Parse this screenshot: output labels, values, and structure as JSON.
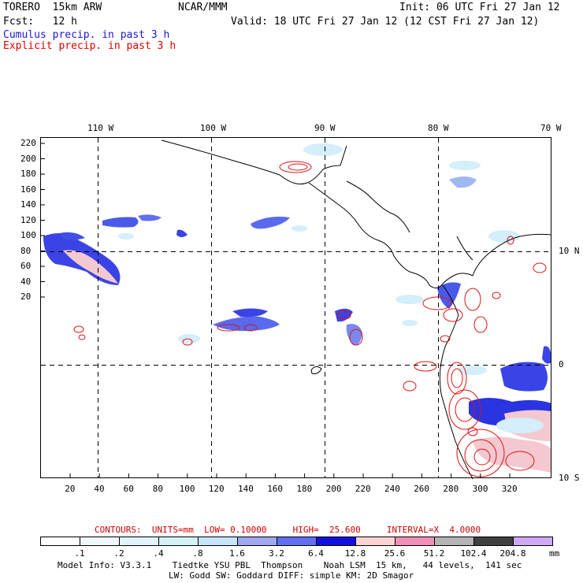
{
  "header": {
    "model": "TORERO  15km ARW",
    "center": "NCAR/MMM",
    "init": "Init: 06 UTC Fri 27 Jan 12",
    "fcst": "Fcst:   12 h",
    "valid": "Valid: 18 UTC Fri 27 Jan 12 (12 CST Fri 27 Jan 12)",
    "line_cumulus": "Cumulus precip. in past 3 h",
    "line_explicit": "Explicit precip. in past 3 h",
    "cumulus_color": "#1a1acc",
    "explicit_color": "#dd0000"
  },
  "map": {
    "lon_labels": [
      "110 W",
      "100 W",
      "90 W",
      "80 W",
      "70 W"
    ],
    "lat_labels": [
      "10 N",
      "0",
      "10 S"
    ],
    "y_ticks": [
      "220",
      "200",
      "180",
      "160",
      "140",
      "120",
      "100",
      "80",
      "60",
      "40",
      "20"
    ],
    "x_ticks": [
      "20",
      "40",
      "60",
      "80",
      "100",
      "120",
      "140",
      "160",
      "180",
      "200",
      "220",
      "240",
      "260",
      "280",
      "300",
      "320"
    ]
  },
  "contours": {
    "text": "CONTOURS:  UNITS=mm  LOW= 0.10000     HIGH=  25.600     INTERVAL=X  4.0000",
    "color": "#cc0000"
  },
  "legend": {
    "unit": "mm",
    "labels": [
      ".1",
      ".2",
      ".4",
      ".8",
      "1.6",
      "3.2",
      "6.4",
      "12.8",
      "25.6",
      "51.2",
      "102.4",
      "204.8"
    ],
    "colors": [
      "#ffffff",
      "#f0f8ff",
      "#e0f4fa",
      "#d4f2f6",
      "#c8e4fa",
      "#a0a8f0",
      "#6070f0",
      "#1010e0",
      "#fcd4d4",
      "#f090b8",
      "#b4b4b4",
      "#404040",
      "#d0a8f8"
    ]
  },
  "footer": {
    "line1": "Model Info: V3.3.1    Tiedtke YSU PBL  Thompson    Noah LSM  15 km,   44 levels,  141 sec",
    "line2": "LW: Godd SW: Goddard DIFF: simple KM: 2D Smagor"
  }
}
